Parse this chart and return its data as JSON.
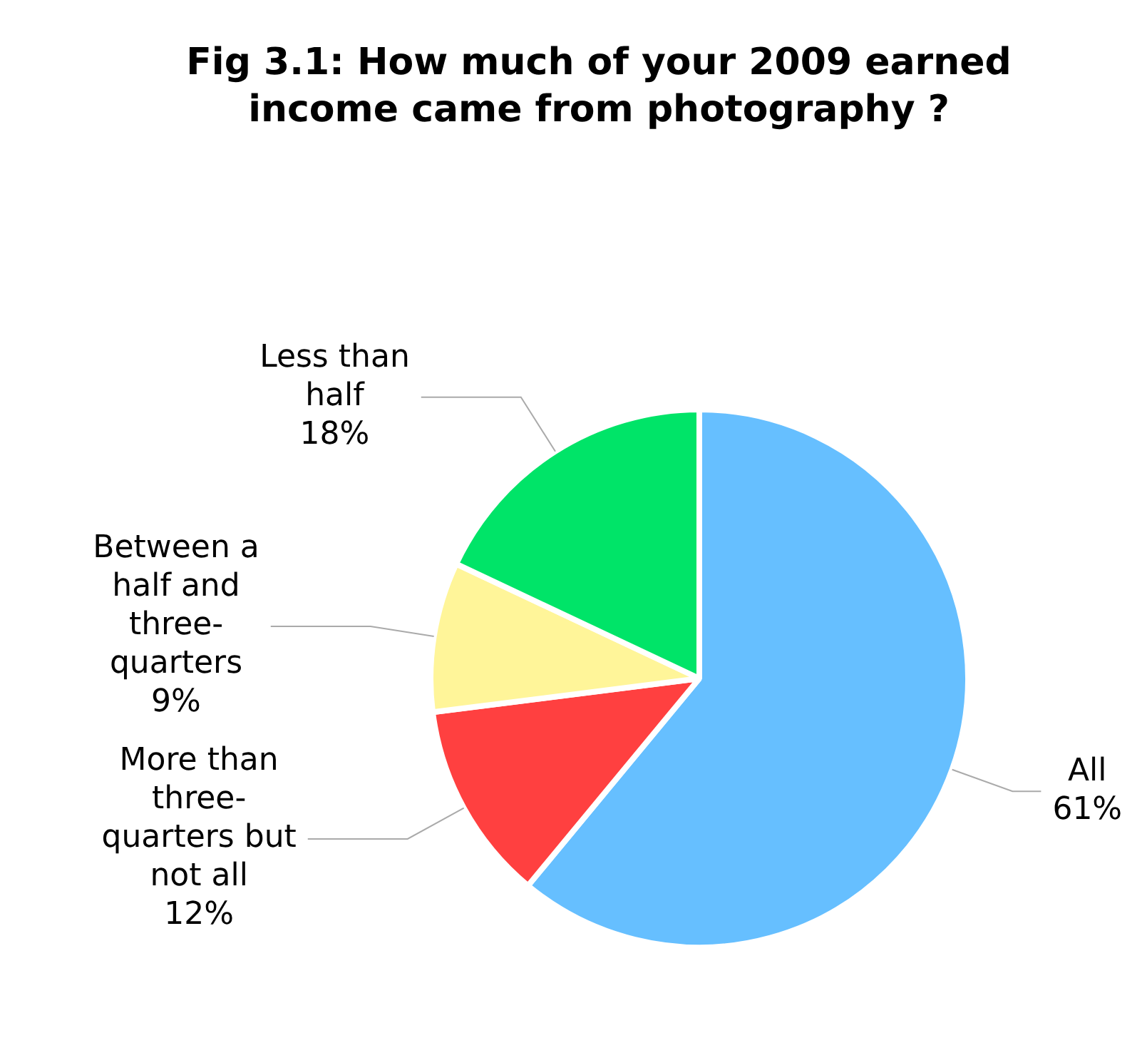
{
  "chart_data": {
    "type": "pie",
    "title": "Fig 3.1: How much of your 2009 earned income came from photography ?",
    "categories": [
      "All",
      "More than three-quarters but not all",
      "Between a half and three-quarters",
      "Less than half"
    ],
    "values": [
      61,
      12,
      9,
      18
    ],
    "value_labels": [
      "61%",
      "12%",
      "9%",
      "18%"
    ],
    "colors": [
      "#66bfff",
      "#ff4040",
      "#fff599",
      "#00e468"
    ],
    "legend": false
  }
}
